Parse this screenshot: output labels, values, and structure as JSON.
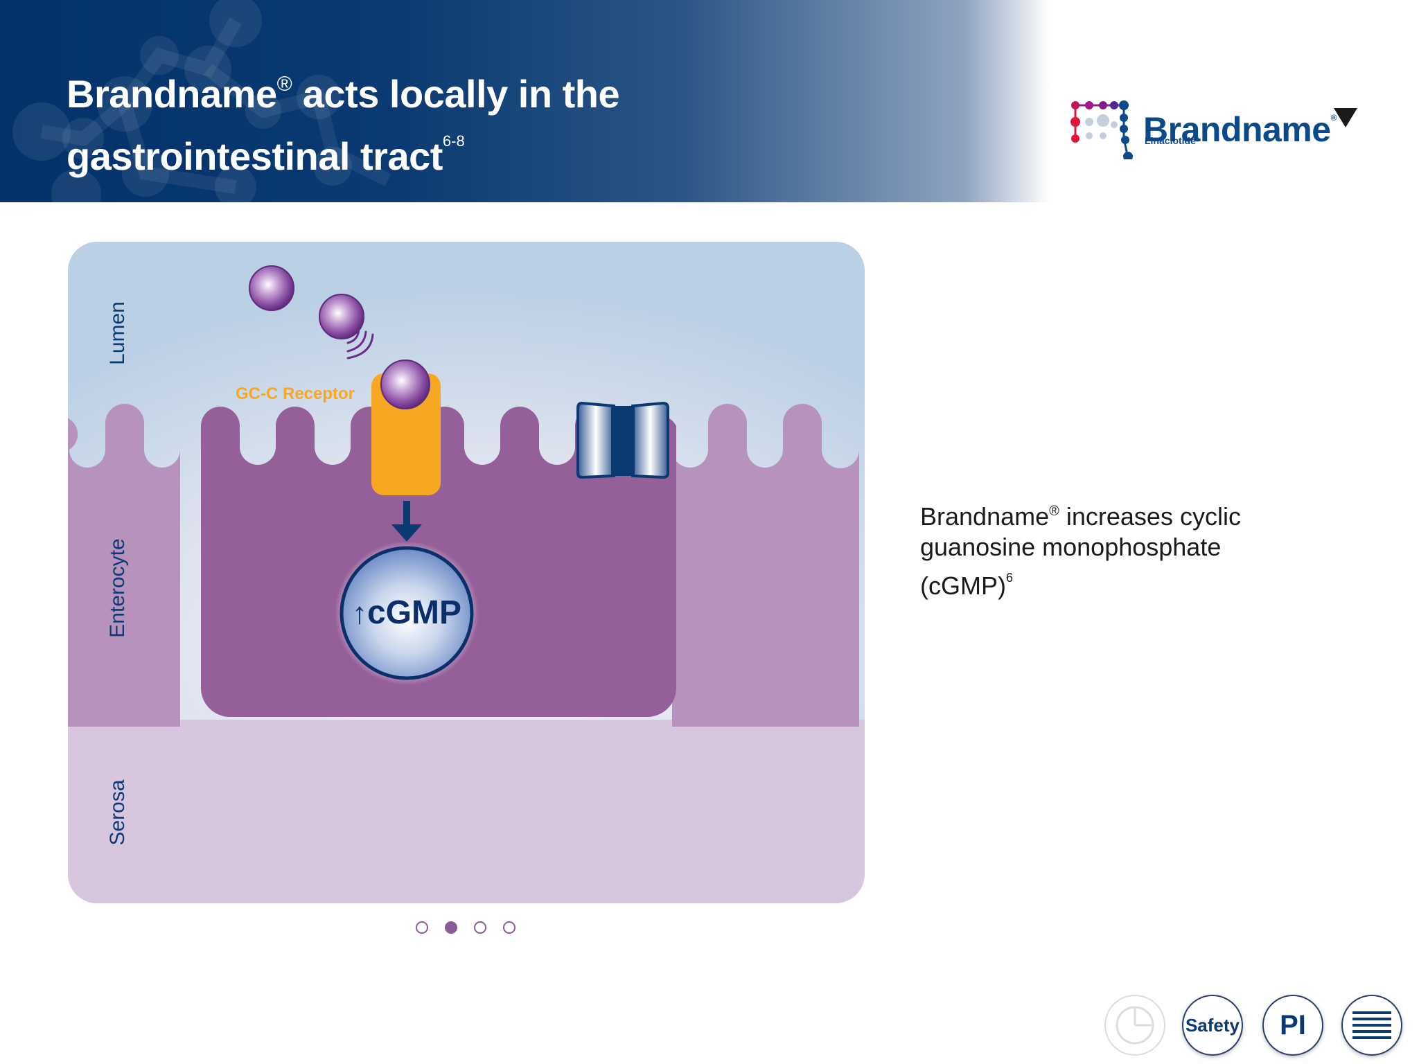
{
  "header": {
    "title_line1_a": "Brandname",
    "title_reg": "®",
    "title_line1_b": " acts locally in the",
    "title_line2": "gastrointestinal tract",
    "title_ref": "6-8"
  },
  "logo": {
    "wordmark": "Brandname",
    "reg": "®",
    "subtitle": "Linaclotide",
    "icon": "molecule-logo-icon",
    "dropdown_icon": "triangle-down-icon"
  },
  "diagram": {
    "layers": {
      "lumen": "Lumen",
      "enterocyte": "Enterocyte",
      "serosa": "Serosa"
    },
    "receptor_label": "GC-C Receptor",
    "cgmp_arrow": "↑",
    "cgmp_label": "cGMP",
    "colors": {
      "lumen_top": "#c3d3e6",
      "enterocyte": "#b692bc",
      "enterocyte_focus": "#955f99",
      "serosa": "#d8c6de",
      "receptor": "#f7a823",
      "linaclotide": "#6a2c86",
      "channel": "#0b3a72"
    }
  },
  "pager": {
    "count": 4,
    "active_index": 1
  },
  "side_text": {
    "part1": "Brandname",
    "reg": "®",
    "part2": " increases cyclic guanosine monophosphate (cGMP)",
    "ref": "6"
  },
  "nav": {
    "chart_icon": "pie-chart-icon",
    "safety_label": "Safety",
    "pi_label": "PI",
    "menu_icon": "menu-lines-icon"
  }
}
